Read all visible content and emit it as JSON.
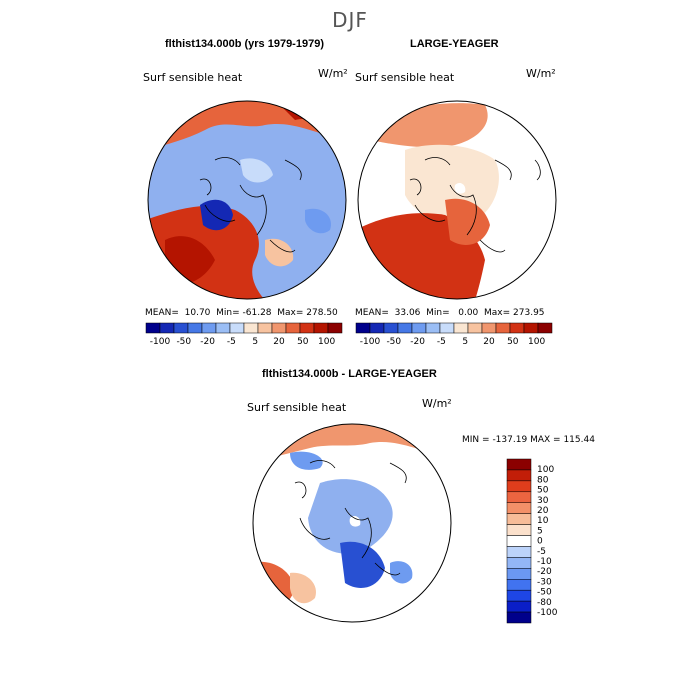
{
  "figure": {
    "title": "DJF",
    "panels": [
      {
        "title": "flthist134.000b (yrs 1979-1979)",
        "variable": "Surf sensible heat",
        "units": "W/m²",
        "mean": "10.70",
        "min": "-61.28",
        "max": "278.50"
      },
      {
        "title": "LARGE-YEAGER",
        "variable": "Surf sensible heat",
        "units": "W/m²",
        "mean": "33.06",
        "min": "0.00",
        "max": "273.95"
      }
    ],
    "diff": {
      "title": "flthist134.000b - LARGE-YEAGER",
      "variable": "Surf sensible heat",
      "units": "W/m²",
      "min": "-137.19",
      "max": "115.44"
    }
  },
  "labels": {
    "mean": "MEAN=",
    "min": "Min=",
    "max": "Max=",
    "diff_min": "MIN =",
    "diff_max": "MAX ="
  },
  "colorbar_top": {
    "colors": [
      "#00008b",
      "#1428b4",
      "#2850d2",
      "#4678e6",
      "#6e9bf0",
      "#9bbef5",
      "#c8dcfa",
      "#fae6d2",
      "#f7c3a0",
      "#f0966e",
      "#e6643c",
      "#d23214",
      "#b41400",
      "#8b0000"
    ],
    "tick_labels": [
      "-100",
      "-50",
      "-20",
      "-5",
      "5",
      "20",
      "50",
      "100"
    ]
  },
  "colorbar_diff": {
    "colors": [
      "#00008b",
      "#0a1ec8",
      "#1e46e6",
      "#4173f0",
      "#6b98f3",
      "#93b6f6",
      "#bcd3fa",
      "#ffffff",
      "#fbe0cb",
      "#f7bc98",
      "#f39068",
      "#ec6440",
      "#e03d1c",
      "#c21e08",
      "#8b0000"
    ],
    "tick_labels": [
      "100",
      "80",
      "50",
      "30",
      "20",
      "10",
      "5",
      "0",
      "-5",
      "-10",
      "-20",
      "-30",
      "-50",
      "-80",
      "-100"
    ]
  }
}
